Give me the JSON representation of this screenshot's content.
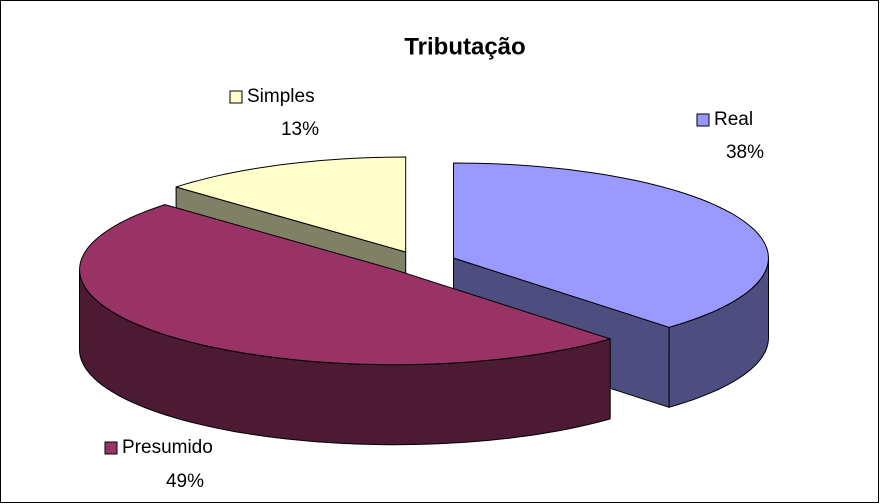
{
  "chart_data": {
    "type": "pie",
    "title": "Tributação",
    "categories": [
      "Real",
      "Presumido",
      "Simples"
    ],
    "values": [
      38,
      49,
      13
    ],
    "value_labels": [
      "38%",
      "49%",
      "13%"
    ],
    "colors": [
      "#9999ff",
      "#993366",
      "#ffffcc"
    ]
  }
}
